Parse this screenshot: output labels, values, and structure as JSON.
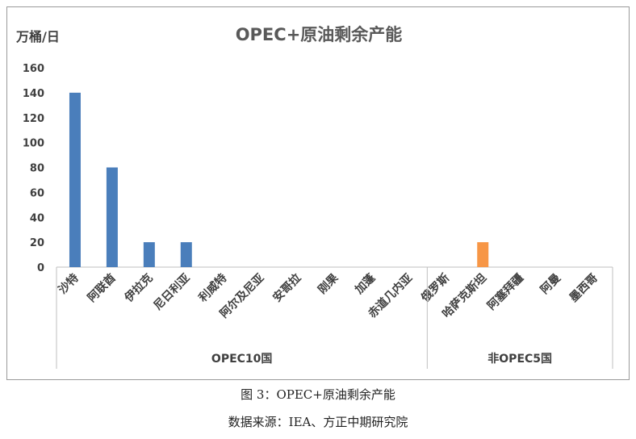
{
  "chart_data": {
    "type": "bar",
    "title": "OPEC+原油剩余产能",
    "ylabel": "万桶/日",
    "xlabel": "",
    "ylim": [
      0,
      160
    ],
    "yticks": [
      "0",
      "20",
      "40",
      "60",
      "80",
      "100",
      "120",
      "140",
      "160"
    ],
    "grid": false,
    "legend": "none",
    "categories": [
      "沙特",
      "阿联酋",
      "伊拉克",
      "尼日利亚",
      "利威特",
      "阿尔及尼亚",
      "安哥拉",
      "刚果",
      "加蓬",
      "赤道几内亚",
      "俄罗斯",
      "哈萨克斯坦",
      "阿塞拜疆",
      "阿曼",
      "墨西哥"
    ],
    "values": [
      140,
      80,
      20,
      20,
      0,
      0,
      0,
      0,
      0,
      0,
      0,
      20,
      0,
      0,
      0
    ],
    "groups": [
      {
        "label": "OPEC10国",
        "count": 10,
        "color": "#4a7ebb"
      },
      {
        "label": "非OPEC5国",
        "count": 5,
        "color": "#f79646"
      }
    ]
  },
  "caption": {
    "figure": "图 3：OPEC+原油剩余产能",
    "source": "数据来源：IEA、方正中期研究院"
  }
}
